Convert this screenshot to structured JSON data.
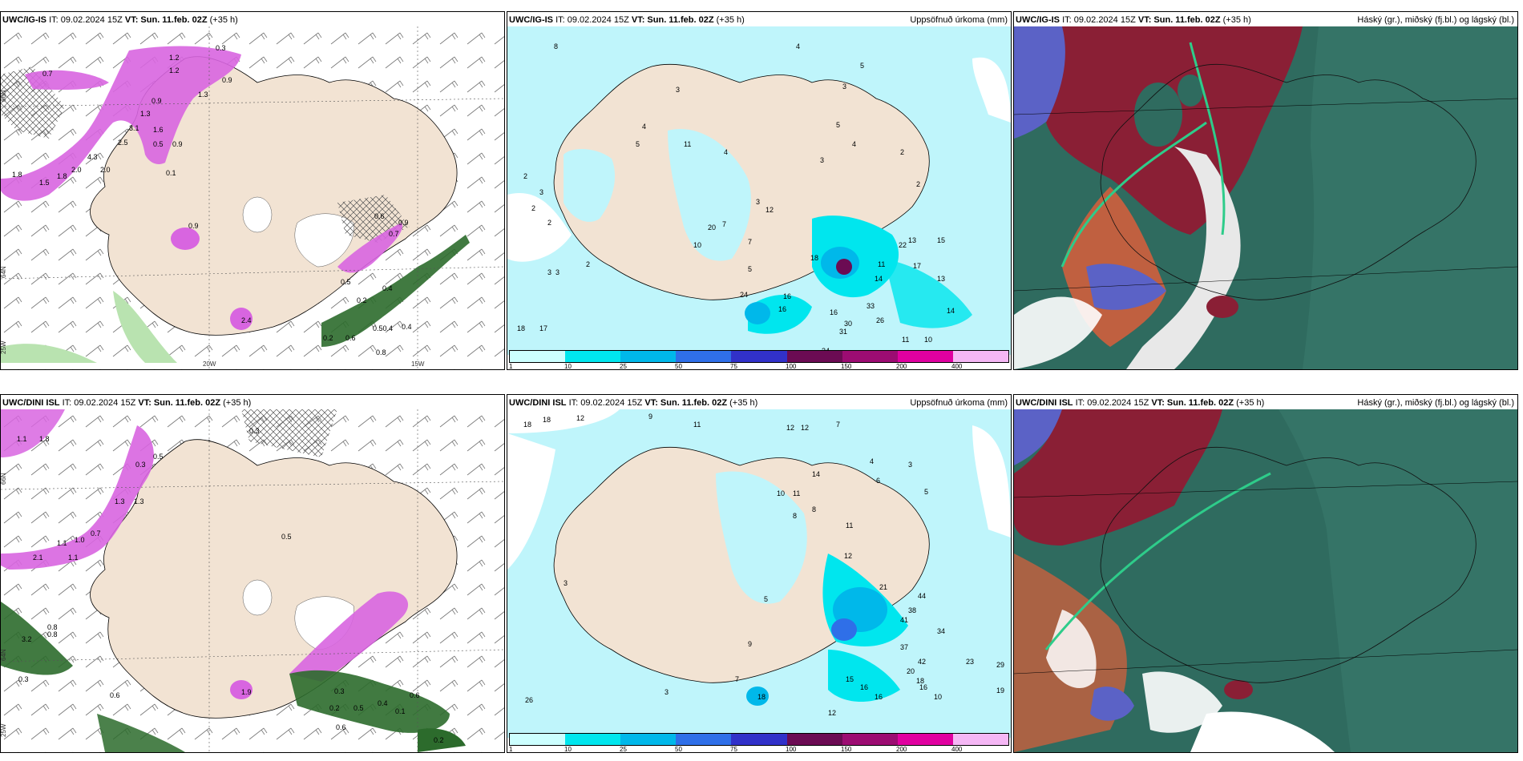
{
  "panels": {
    "top_left": {
      "model": "UWC/IG-IS",
      "run": "IT: 09.02.2024 15Z",
      "valid_label": "VT: Sun. 11.feb. 02Z",
      "lead": "(+35 h)",
      "right_title": ""
    },
    "top_mid": {
      "model": "UWC/IG-IS",
      "run": "IT: 09.02.2024 15Z",
      "valid_label": "VT: Sun. 11.feb. 02Z",
      "lead": "(+35 h)",
      "right_title": "Uppsöfnuð úrkoma (mm)"
    },
    "top_right": {
      "model": "UWC/IG-IS",
      "run": "IT: 09.02.2024 15Z",
      "valid_label": "VT: Sun. 11.feb. 02Z",
      "lead": "(+35 h)",
      "right_title": "Háský (gr.), miðský (fj.bl.) og lágský (bl.)"
    },
    "bot_left": {
      "model": "UWC/DINI ISL",
      "run": "IT: 09.02.2024 15Z",
      "valid_label": "VT: Sun. 11.feb. 02Z",
      "lead": "(+35 h)",
      "right_title": ""
    },
    "bot_mid": {
      "model": "UWC/DINI ISL",
      "run": "IT: 09.02.2024 15Z",
      "valid_label": "VT: Sun. 11.feb. 02Z",
      "lead": "(+35 h)",
      "right_title": "Uppsöfnuð úrkoma (mm)"
    },
    "bot_right": {
      "model": "UWC/DINI ISL",
      "run": "IT: 09.02.2024 15Z",
      "valid_label": "VT: Sun. 11.feb. 02Z",
      "lead": "(+35 h)",
      "right_title": "Háský (gr.), miðský (fj.bl.) og lágský (bl.)"
    }
  },
  "axes": {
    "lat_labels": [
      "66N",
      "64N",
      "25W"
    ],
    "lon_labels_top": [
      "20W",
      "15W"
    ]
  },
  "colorbar": {
    "labels": [
      "1",
      "10",
      "25",
      "50",
      "75",
      "100",
      "150",
      "200",
      "400"
    ],
    "colors": [
      "#ccffff",
      "#00e6ee",
      "#00b8ea",
      "#2f6fe8",
      "#3131c9",
      "#6b0b53",
      "#9c0c72",
      "#e000a0",
      "#f5b7f5"
    ]
  },
  "colors": {
    "land": "#f2e3d3",
    "sea_precip_light": "#bff5fb",
    "precip_mid": "#00e6ee",
    "snow_magenta": "#d865e0",
    "rain_green": "#2c6b2c",
    "cloud_dark": "#2f6b5f",
    "cloud_red": "#8a1f35",
    "cloud_blue": "#5b62c6"
  },
  "top_left_labels": [
    "0.3",
    "1.2",
    "1.2",
    "0.7",
    "0.9",
    "1.3",
    "0.9",
    "1.3",
    "1.6",
    "3.1",
    "2.5",
    "0.9",
    "0.5",
    "4.3",
    "2.0",
    "2.0",
    "1.8",
    "1.5",
    "1.8",
    "0.1",
    "0.9",
    "0.6",
    "0.7",
    "0.5",
    "0.2",
    "0.4",
    "0.50.4",
    "0.4",
    "0.9",
    "0.6",
    "0.8",
    "0.2",
    "2.4"
  ],
  "top_mid_labels": [
    "8",
    "4",
    "5",
    "3",
    "3",
    "4",
    "5",
    "2",
    "3",
    "5",
    "4",
    "3",
    "4",
    "2",
    "2",
    "3",
    "11",
    "7",
    "3",
    "13",
    "20",
    "10",
    "12",
    "7",
    "5",
    "18",
    "16",
    "11",
    "22",
    "15",
    "14",
    "17",
    "24",
    "16",
    "33",
    "16",
    "26",
    "31",
    "30",
    "14",
    "13",
    "34",
    "11",
    "10",
    "18",
    "17",
    "2",
    "2",
    "3",
    "2"
  ],
  "bot_left_labels": [
    "0.3",
    "1.1",
    "1.8",
    "0.5",
    "0.3",
    "1.3",
    "1.3",
    "1.0",
    "0.7",
    "2.1",
    "1.1",
    "1.1",
    "0.5",
    "0.8",
    "0.8",
    "3.2",
    "0.3",
    "0.6",
    "0.3",
    "0.2",
    "0.4",
    "0.6",
    "0.1",
    "0.2",
    "0.5",
    "0.6",
    "1.9"
  ],
  "bot_mid_labels": [
    "9",
    "11",
    "18",
    "18",
    "12",
    "12",
    "12",
    "7",
    "8",
    "4",
    "3",
    "6",
    "5",
    "14",
    "10",
    "8",
    "11",
    "11",
    "12",
    "5",
    "3",
    "21",
    "44",
    "38",
    "41",
    "34",
    "37",
    "42",
    "23",
    "29",
    "16",
    "20",
    "18",
    "16",
    "15",
    "16",
    "10",
    "12",
    "9",
    "7",
    "3",
    "19",
    "18",
    "26"
  ]
}
